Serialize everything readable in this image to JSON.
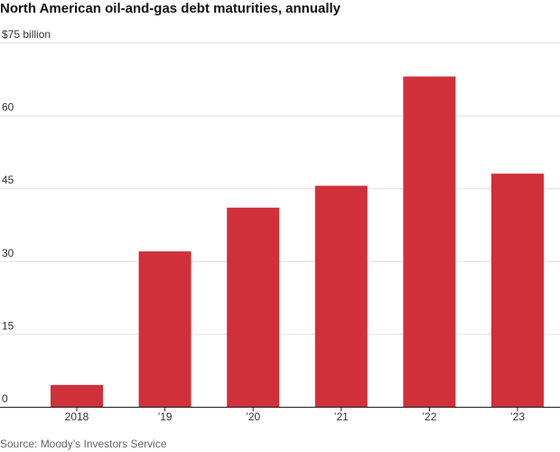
{
  "chart_data": {
    "type": "bar",
    "title": "North American oil-and-gas debt maturities, annually",
    "categories": [
      "2018",
      "’19",
      "’20",
      "’21",
      "’22",
      "’23"
    ],
    "values": [
      4.5,
      32,
      41,
      45.5,
      68,
      48
    ],
    "ylim": [
      0,
      75
    ],
    "yticks": [
      0,
      15,
      30,
      45,
      60,
      75
    ],
    "ytick_labels": [
      "0",
      "15",
      "30",
      "45",
      "60",
      "$75 billion"
    ],
    "grid": true,
    "bar_color": "#d0303a",
    "gridline_color": "#e0e0e0",
    "axis_color": "#222222",
    "source": "Source: Moody’s Investors Service"
  }
}
